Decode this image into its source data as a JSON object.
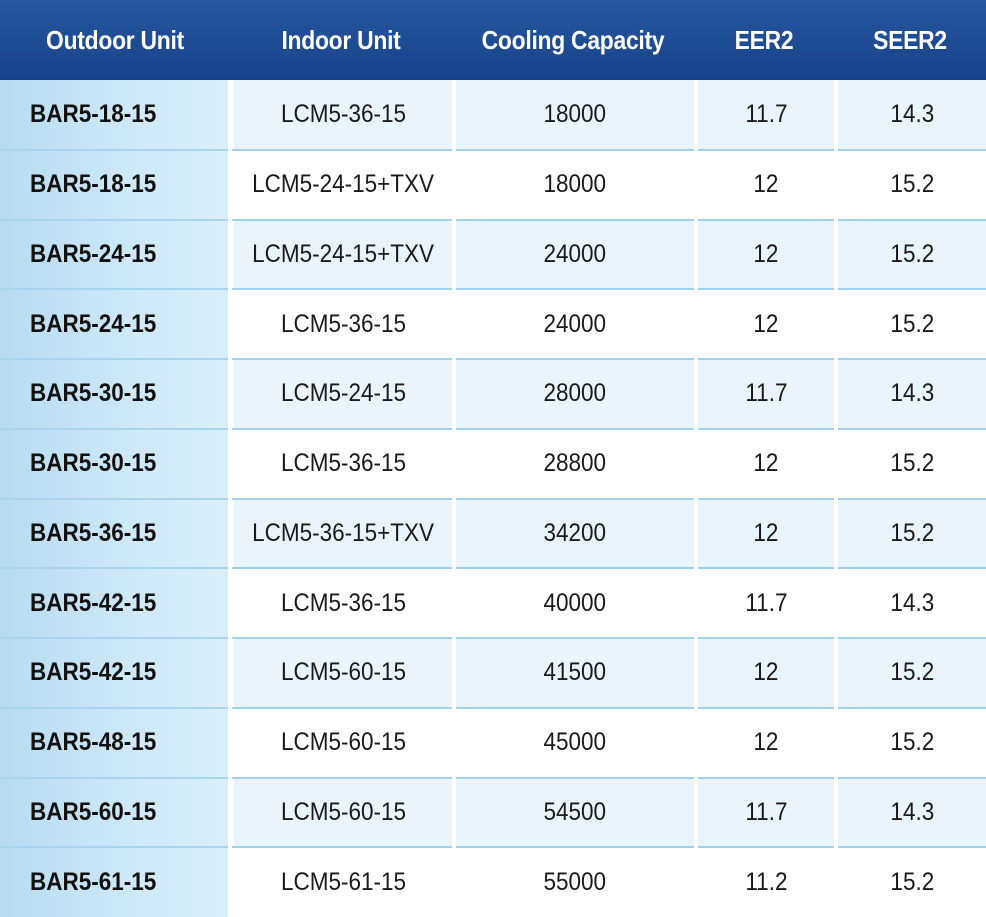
{
  "table": {
    "headers": [
      "Outdoor Unit",
      "Indoor Unit",
      "Cooling Capacity",
      "EER2",
      "SEER2"
    ],
    "rows": [
      {
        "outdoor": "BAR5-18-15",
        "indoor": "LCM5-36-15",
        "capacity": "18000",
        "eer2": "11.7",
        "seer2": "14.3"
      },
      {
        "outdoor": "BAR5-18-15",
        "indoor": "LCM5-24-15+TXV",
        "capacity": "18000",
        "eer2": "12",
        "seer2": "15.2"
      },
      {
        "outdoor": "BAR5-24-15",
        "indoor": "LCM5-24-15+TXV",
        "capacity": "24000",
        "eer2": "12",
        "seer2": "15.2"
      },
      {
        "outdoor": "BAR5-24-15",
        "indoor": "LCM5-36-15",
        "capacity": "24000",
        "eer2": "12",
        "seer2": "15.2"
      },
      {
        "outdoor": "BAR5-30-15",
        "indoor": "LCM5-24-15",
        "capacity": "28000",
        "eer2": "11.7",
        "seer2": "14.3"
      },
      {
        "outdoor": "BAR5-30-15",
        "indoor": "LCM5-36-15",
        "capacity": "28800",
        "eer2": "12",
        "seer2": "15.2"
      },
      {
        "outdoor": "BAR5-36-15",
        "indoor": "LCM5-36-15+TXV",
        "capacity": "34200",
        "eer2": "12",
        "seer2": "15.2"
      },
      {
        "outdoor": "BAR5-42-15",
        "indoor": "LCM5-36-15",
        "capacity": "40000",
        "eer2": "11.7",
        "seer2": "14.3"
      },
      {
        "outdoor": "BAR5-42-15",
        "indoor": "LCM5-60-15",
        "capacity": "41500",
        "eer2": "12",
        "seer2": "15.2"
      },
      {
        "outdoor": "BAR5-48-15",
        "indoor": "LCM5-60-15",
        "capacity": "45000",
        "eer2": "12",
        "seer2": "15.2"
      },
      {
        "outdoor": "BAR5-60-15",
        "indoor": "LCM5-60-15",
        "capacity": "54500",
        "eer2": "11.7",
        "seer2": "14.3"
      },
      {
        "outdoor": "BAR5-61-15",
        "indoor": "LCM5-61-15",
        "capacity": "55000",
        "eer2": "11.2",
        "seer2": "15.2"
      }
    ]
  },
  "colors": {
    "header_bg": "#1f4e96",
    "header_text": "#ffffff",
    "first_col_bg": "#cde8f7",
    "shaded_row_bg": "#e9f4fc",
    "row_separator": "#9fd2ee"
  }
}
